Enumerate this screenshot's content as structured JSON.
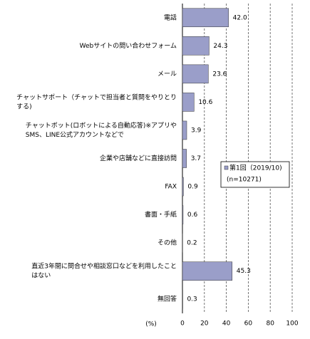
{
  "chart_data": {
    "type": "barh",
    "categories": [
      [
        "電話"
      ],
      [
        "Webサイトの問い合わせフォーム"
      ],
      [
        "メール"
      ],
      [
        "チャットサポート（チャットで担当者と質問をやりとり",
        "する)"
      ],
      [
        "チャットボット(ロボットによる自動応答)※アプリや",
        "SMS、LINE公式アカウントなどで"
      ],
      [
        "企業や店舗などに直接訪問"
      ],
      [
        "FAX"
      ],
      [
        "書面・手紙"
      ],
      [
        "その他"
      ],
      [
        "直近3年間に問合せや相談窓口などを利用したこと",
        "はない"
      ],
      [
        "無回答"
      ]
    ],
    "series": [
      {
        "name": "第1回（2019/10)",
        "color": "#9a9ec9",
        "values": [
          42.0,
          24.3,
          23.6,
          10.6,
          3.9,
          3.7,
          0.9,
          0.6,
          0.2,
          45.3,
          0.3
        ],
        "value_labels": [
          "42.0",
          "24.3",
          "23.6",
          "10.6",
          "3.9",
          "3.7",
          "0.9",
          "0.6",
          "0.2",
          "45.3",
          "0.3"
        ]
      }
    ],
    "legend_note": "(n=10271)",
    "xlabel": "(%)",
    "xlim": [
      0,
      100
    ],
    "xticks": [
      0,
      20,
      40,
      60,
      80,
      100
    ],
    "grid": true
  }
}
